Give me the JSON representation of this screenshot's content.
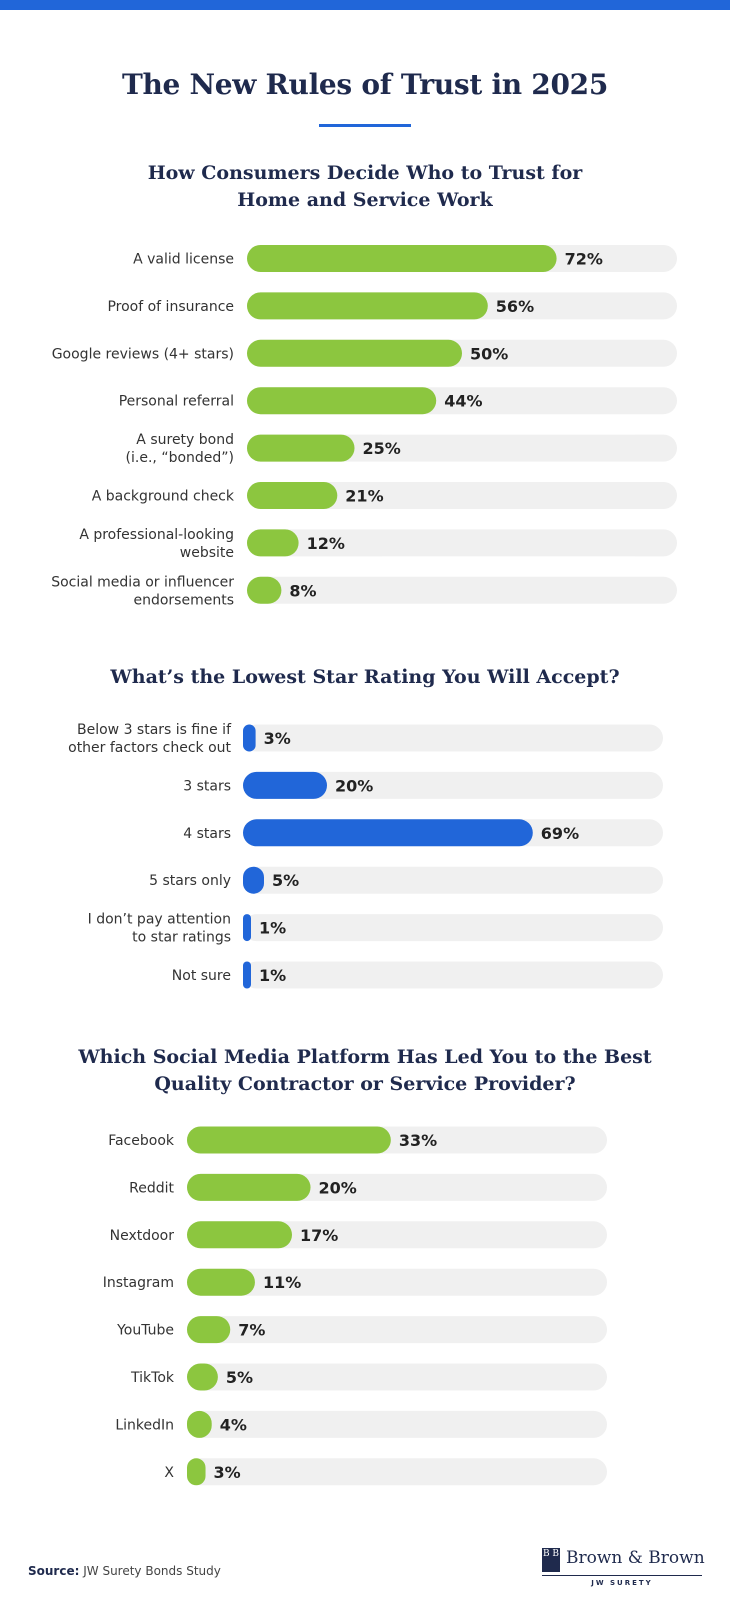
{
  "page": {
    "title": "The New Rules of Trust in 2025",
    "source_label": "Source:",
    "source_text": "JW Surety Bonds Study",
    "logo_name": "Brown & Brown",
    "logo_emblem": "B B",
    "logo_sub": "JW SURETY"
  },
  "colors": {
    "green": "#8cc63f",
    "blue": "#2166d9",
    "track": "#f0f0f0",
    "navy": "#1f2a4d"
  },
  "chart_data": [
    {
      "type": "bar",
      "orientation": "horizontal",
      "title_lines": [
        "How Consumers Decide Who to Trust for",
        "Home and Service Work"
      ],
      "categories": [
        [
          "A valid license"
        ],
        [
          "Proof of insurance"
        ],
        [
          "Google reviews (4+ stars)"
        ],
        [
          "Personal referral"
        ],
        [
          "A surety bond",
          "(i.e., “bonded”)"
        ],
        [
          "A background check"
        ],
        [
          "A professional-looking",
          "website"
        ],
        [
          "Social media or influencer",
          "endorsements"
        ]
      ],
      "values": [
        72,
        56,
        50,
        44,
        25,
        21,
        12,
        8
      ],
      "value_labels": [
        "72%",
        "56%",
        "50%",
        "44%",
        "25%",
        "21%",
        "12%",
        "8%"
      ],
      "xlim": [
        0,
        100
      ],
      "color": "#8cc63f"
    },
    {
      "type": "bar",
      "orientation": "horizontal",
      "title_lines": [
        "What’s the Lowest Star Rating You Will Accept?"
      ],
      "categories": [
        [
          "Below 3 stars is fine if",
          "other factors check out"
        ],
        [
          "3 stars"
        ],
        [
          "4 stars"
        ],
        [
          "5 stars only"
        ],
        [
          "I don’t pay attention",
          "to star ratings"
        ],
        [
          "Not sure"
        ]
      ],
      "values": [
        3,
        20,
        69,
        5,
        1,
        1
      ],
      "value_labels": [
        "3%",
        "20%",
        "69%",
        "5%",
        "1%",
        "1%"
      ],
      "xlim": [
        0,
        100
      ],
      "color": "#2166d9"
    },
    {
      "type": "bar",
      "orientation": "horizontal",
      "title_lines": [
        "Which Social Media Platform Has Led You to the Best",
        "Quality Contractor or Service Provider?"
      ],
      "categories": [
        [
          "Facebook"
        ],
        [
          "Reddit"
        ],
        [
          "Nextdoor"
        ],
        [
          "Instagram"
        ],
        [
          "YouTube"
        ],
        [
          "TikTok"
        ],
        [
          "LinkedIn"
        ],
        [
          "X"
        ]
      ],
      "values": [
        33,
        20,
        17,
        11,
        7,
        5,
        4,
        3
      ],
      "value_labels": [
        "33%",
        "20%",
        "17%",
        "11%",
        "7%",
        "5%",
        "4%",
        "3%"
      ],
      "xlim": [
        0,
        68
      ],
      "color": "#8cc63f"
    }
  ]
}
